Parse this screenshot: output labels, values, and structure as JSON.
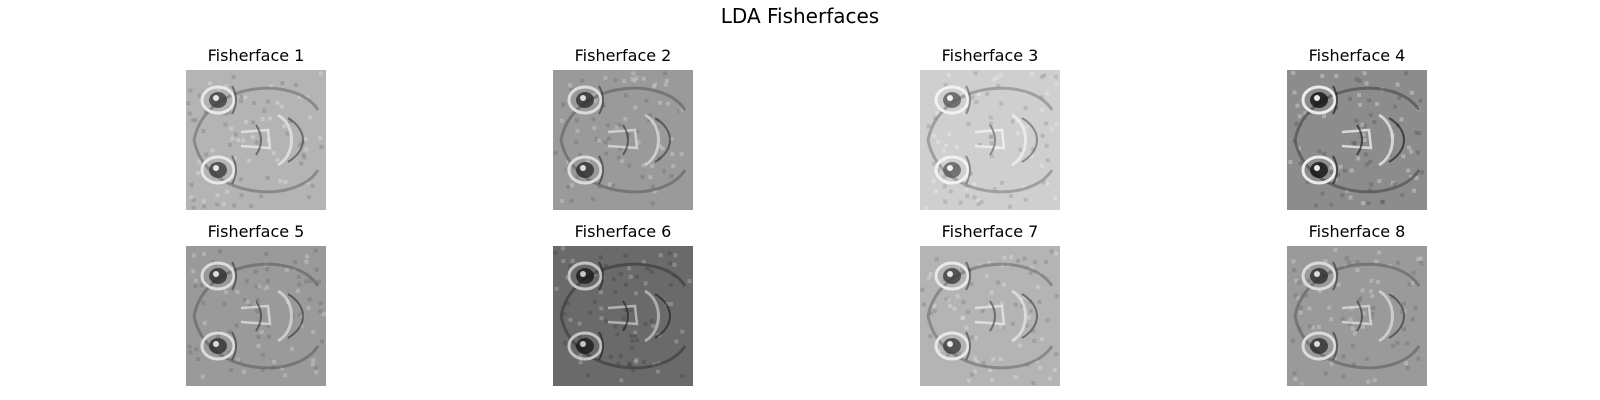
{
  "figure": {
    "title": "LDA Fisherfaces"
  },
  "panels": [
    {
      "title": "Fisherface 1",
      "tone": "light"
    },
    {
      "title": "Fisherface 2",
      "tone": "mid"
    },
    {
      "title": "Fisherface 3",
      "tone": "pale"
    },
    {
      "title": "Fisherface 4",
      "tone": "contrast"
    },
    {
      "title": "Fisherface 5",
      "tone": "mid"
    },
    {
      "title": "Fisherface 6",
      "tone": "dark"
    },
    {
      "title": "Fisherface 7",
      "tone": "light"
    },
    {
      "title": "Fisherface 8",
      "tone": "mid"
    }
  ]
}
